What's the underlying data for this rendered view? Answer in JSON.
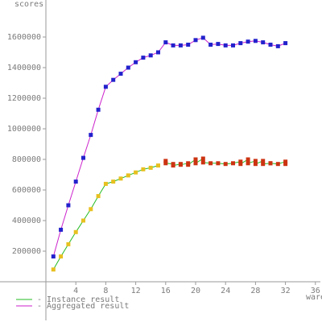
{
  "chart_data": {
    "type": "line",
    "title": "",
    "ylabel": "scores",
    "xlabel": "ware",
    "xlim": [
      0,
      37
    ],
    "ylim": [
      -100000,
      1820000
    ],
    "grid": false,
    "x_ticks": [
      4,
      8,
      12,
      16,
      20,
      24,
      28,
      32,
      36
    ],
    "x_tick_labels": [
      "4",
      "8",
      "12",
      "16",
      "20",
      "24",
      "28",
      "32",
      "36"
    ],
    "y_ticks": [
      200000,
      400000,
      600000,
      800000,
      1000000,
      1200000,
      1400000,
      1600000
    ],
    "y_tick_labels": [
      "200000",
      "400000",
      "600000",
      "800000",
      "1000000",
      "1200000",
      "1400000",
      "1600000"
    ],
    "legend": {
      "placement": "bottom-left",
      "entries": [
        {
          "label": "- Instance result",
          "color": "#22bb22"
        },
        {
          "label": "- Aggregated result",
          "color": "#cc22cc"
        }
      ]
    },
    "series": [
      {
        "name": "Instance result",
        "line_color": "#22bb22",
        "marker_color": "#e8c020",
        "x": [
          1,
          2,
          3,
          4,
          5,
          6,
          7,
          8,
          9,
          10,
          11,
          12,
          13,
          14,
          15
        ],
        "y": [
          80000,
          165000,
          245000,
          325000,
          400000,
          475000,
          560000,
          640000,
          655000,
          675000,
          695000,
          715000,
          735000,
          745000,
          760000
        ]
      },
      {
        "name": "Instance result",
        "line_color": "#22bb22",
        "marker_color": "#cc3311",
        "x": [
          16,
          16,
          17,
          17,
          18,
          18,
          19,
          19,
          20,
          20,
          21,
          21,
          22,
          23,
          24,
          25,
          26,
          26,
          27,
          27,
          28,
          28,
          29,
          29,
          30,
          30,
          31,
          32,
          32
        ],
        "y": [
          790000,
          775000,
          770000,
          760000,
          770000,
          765000,
          775000,
          765000,
          800000,
          775000,
          805000,
          780000,
          775000,
          775000,
          770000,
          775000,
          785000,
          770000,
          800000,
          775000,
          790000,
          770000,
          790000,
          770000,
          775000,
          775000,
          770000,
          785000,
          770000
        ]
      },
      {
        "name": "Aggregated result",
        "line_color": "#cc22cc",
        "marker_color": "#2222cc",
        "x": [
          1,
          2,
          3,
          4,
          5,
          6,
          7,
          8,
          9,
          10,
          11,
          12,
          13,
          14,
          15,
          16,
          17,
          18,
          19,
          20,
          21,
          22,
          23,
          24,
          25,
          26,
          27,
          28,
          29,
          30,
          31,
          32
        ],
        "y": [
          165000,
          340000,
          500000,
          655000,
          810000,
          960000,
          1125000,
          1275000,
          1320000,
          1360000,
          1400000,
          1435000,
          1465000,
          1480000,
          1500000,
          1565000,
          1545000,
          1545000,
          1550000,
          1580000,
          1595000,
          1550000,
          1555000,
          1545000,
          1545000,
          1560000,
          1570000,
          1575000,
          1565000,
          1550000,
          1540000,
          1560000
        ]
      }
    ]
  }
}
